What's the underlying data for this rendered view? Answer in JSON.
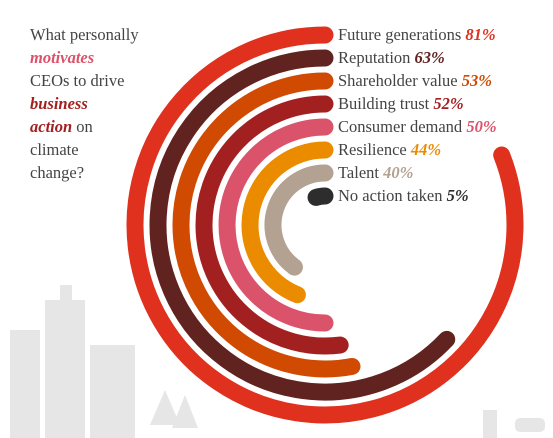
{
  "chart_data": {
    "type": "radial-bar",
    "title_lines": [
      [
        "What personally"
      ],
      [
        "motivates"
      ],
      [
        "CEOs to drive"
      ],
      [
        "business"
      ],
      [
        "action",
        "on"
      ],
      [
        "climate"
      ],
      [
        "change?"
      ]
    ],
    "categories": [
      "Future generations",
      "Reputation",
      "Shareholder value",
      "Building trust",
      "Consumer demand",
      "Resilience",
      "Talent",
      "No action taken"
    ],
    "series": [
      {
        "values": [
          81,
          63,
          53,
          52,
          50,
          44,
          40,
          5
        ],
        "value_labels": [
          "81%",
          "63%",
          "53%",
          "52%",
          "50%",
          "44%",
          "40%",
          "5%"
        ],
        "colors": [
          "#e0301e",
          "#602320",
          "#d04a02",
          "#a32020",
          "#db536a",
          "#eb8c00",
          "#b3a192",
          "#2d2d2d"
        ]
      }
    ],
    "value_max": 100
  }
}
